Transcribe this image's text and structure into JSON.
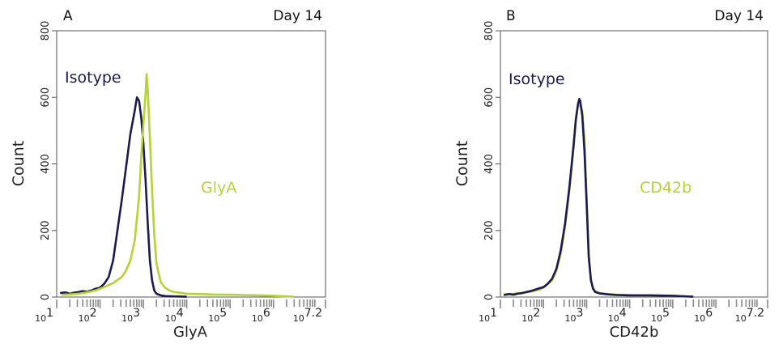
{
  "colors": {
    "isotype": "#1c1a4e",
    "marker": "#b5d334",
    "axis": "#555555",
    "tick": "#888888"
  },
  "chart_data": [
    {
      "type": "line",
      "panel": "A",
      "annotation": "Day 14",
      "xlabel": "GlyA",
      "ylabel": "Count",
      "x_scale": "log10",
      "xlim": [
        10,
        15848932
      ],
      "ylim": [
        0,
        800
      ],
      "yticks": [
        0,
        200,
        400,
        600,
        800
      ],
      "xticks": [
        {
          "value": 10,
          "base": "10",
          "exp": "1"
        },
        {
          "value": 100,
          "base": "10",
          "exp": "2"
        },
        {
          "value": 1000,
          "base": "10",
          "exp": "3"
        },
        {
          "value": 10000,
          "base": "10",
          "exp": "4"
        },
        {
          "value": 100000,
          "base": "10",
          "exp": "5"
        },
        {
          "value": 1000000,
          "base": "10",
          "exp": "6"
        },
        {
          "value": 15848932,
          "base": "10",
          "exp": "7.2"
        }
      ],
      "series": [
        {
          "name": "Isotype",
          "color": "#1c1a4e",
          "points": [
            [
              12,
              12
            ],
            [
              16,
              14
            ],
            [
              20,
              10
            ],
            [
              25,
              13
            ],
            [
              32,
              15
            ],
            [
              40,
              18
            ],
            [
              50,
              16
            ],
            [
              63,
              20
            ],
            [
              79,
              25
            ],
            [
              100,
              28
            ],
            [
              125,
              40
            ],
            [
              158,
              60
            ],
            [
              200,
              110
            ],
            [
              251,
              200
            ],
            [
              316,
              290
            ],
            [
              398,
              390
            ],
            [
              501,
              490
            ],
            [
              631,
              560
            ],
            [
              708,
              600
            ],
            [
              794,
              590
            ],
            [
              891,
              540
            ],
            [
              1000,
              460
            ],
            [
              1122,
              350
            ],
            [
              1259,
              220
            ],
            [
              1413,
              110
            ],
            [
              1585,
              50
            ],
            [
              1778,
              20
            ],
            [
              2000,
              10
            ],
            [
              2512,
              5
            ],
            [
              3162,
              3
            ],
            [
              5012,
              2
            ],
            [
              10000,
              1
            ]
          ]
        },
        {
          "name": "GlyA",
          "color": "#b5d334",
          "points": [
            [
              13,
              6
            ],
            [
              20,
              8
            ],
            [
              32,
              10
            ],
            [
              50,
              14
            ],
            [
              79,
              20
            ],
            [
              125,
              30
            ],
            [
              200,
              42
            ],
            [
              316,
              60
            ],
            [
              398,
              80
            ],
            [
              501,
              110
            ],
            [
              631,
              170
            ],
            [
              794,
              300
            ],
            [
              891,
              420
            ],
            [
              1000,
              520
            ],
            [
              1122,
              610
            ],
            [
              1184,
              670
            ],
            [
              1259,
              620
            ],
            [
              1413,
              480
            ],
            [
              1585,
              320
            ],
            [
              1778,
              190
            ],
            [
              2000,
              100
            ],
            [
              2512,
              45
            ],
            [
              3162,
              28
            ],
            [
              3981,
              20
            ],
            [
              5012,
              15
            ],
            [
              7943,
              12
            ],
            [
              10000,
              10
            ],
            [
              20000,
              9
            ],
            [
              50000,
              7
            ],
            [
              100000,
              7
            ],
            [
              200000,
              6
            ],
            [
              500000,
              5
            ],
            [
              1000000,
              4
            ],
            [
              2000000,
              2
            ],
            [
              3000000,
              1
            ]
          ]
        }
      ]
    },
    {
      "type": "line",
      "panel": "B",
      "annotation": "Day 14",
      "xlabel": "CD42b",
      "ylabel": "Count",
      "x_scale": "log10",
      "xlim": [
        10,
        15848932
      ],
      "ylim": [
        0,
        800
      ],
      "yticks": [
        0,
        200,
        400,
        600,
        800
      ],
      "xticks": [
        {
          "value": 10,
          "base": "10",
          "exp": "1"
        },
        {
          "value": 100,
          "base": "10",
          "exp": "2"
        },
        {
          "value": 1000,
          "base": "10",
          "exp": "3"
        },
        {
          "value": 10000,
          "base": "10",
          "exp": "4"
        },
        {
          "value": 100000,
          "base": "10",
          "exp": "5"
        },
        {
          "value": 1000000,
          "base": "10",
          "exp": "6"
        },
        {
          "value": 15848932,
          "base": "10",
          "exp": "7.2"
        }
      ],
      "series": [
        {
          "name": "CD42b",
          "color": "#b5d334",
          "points": [
            [
              12,
              8
            ],
            [
              20,
              10
            ],
            [
              32,
              13
            ],
            [
              50,
              16
            ],
            [
              79,
              22
            ],
            [
              100,
              28
            ],
            [
              158,
              50
            ],
            [
              200,
              80
            ],
            [
              251,
              130
            ],
            [
              316,
              210
            ],
            [
              398,
              320
            ],
            [
              501,
              450
            ],
            [
              562,
              540
            ],
            [
              631,
              575
            ],
            [
              708,
              575
            ],
            [
              794,
              560
            ],
            [
              891,
              470
            ],
            [
              1000,
              300
            ],
            [
              1122,
              130
            ],
            [
              1259,
              55
            ],
            [
              1413,
              28
            ],
            [
              1585,
              18
            ],
            [
              2000,
              12
            ],
            [
              3162,
              9
            ],
            [
              5012,
              7
            ],
            [
              10000,
              6
            ],
            [
              31623,
              5
            ],
            [
              100000,
              4
            ],
            [
              200000,
              2
            ]
          ]
        },
        {
          "name": "Isotype",
          "color": "#1c1a4e",
          "points": [
            [
              12,
              6
            ],
            [
              16,
              9
            ],
            [
              20,
              7
            ],
            [
              25,
              10
            ],
            [
              32,
              12
            ],
            [
              40,
              15
            ],
            [
              50,
              18
            ],
            [
              63,
              22
            ],
            [
              79,
              26
            ],
            [
              100,
              30
            ],
            [
              125,
              40
            ],
            [
              158,
              55
            ],
            [
              200,
              85
            ],
            [
              251,
              140
            ],
            [
              316,
              220
            ],
            [
              398,
              330
            ],
            [
              501,
              460
            ],
            [
              562,
              530
            ],
            [
              631,
              580
            ],
            [
              676,
              595
            ],
            [
              708,
              590
            ],
            [
              794,
              545
            ],
            [
              891,
              440
            ],
            [
              1000,
              280
            ],
            [
              1122,
              120
            ],
            [
              1259,
              50
            ],
            [
              1413,
              25
            ],
            [
              1585,
              15
            ],
            [
              2000,
              11
            ],
            [
              3162,
              8
            ],
            [
              5012,
              6
            ],
            [
              10000,
              5
            ],
            [
              31623,
              5
            ],
            [
              100000,
              4
            ],
            [
              200000,
              2
            ],
            [
              300000,
              1
            ]
          ]
        }
      ]
    }
  ],
  "series_labels": [
    {
      "panel": 0,
      "series": 0,
      "text": "Isotype"
    },
    {
      "panel": 0,
      "series": 1,
      "text": "GlyA"
    },
    {
      "panel": 1,
      "series": 1,
      "text": "Isotype"
    },
    {
      "panel": 1,
      "series": 0,
      "text": "CD42b"
    }
  ]
}
